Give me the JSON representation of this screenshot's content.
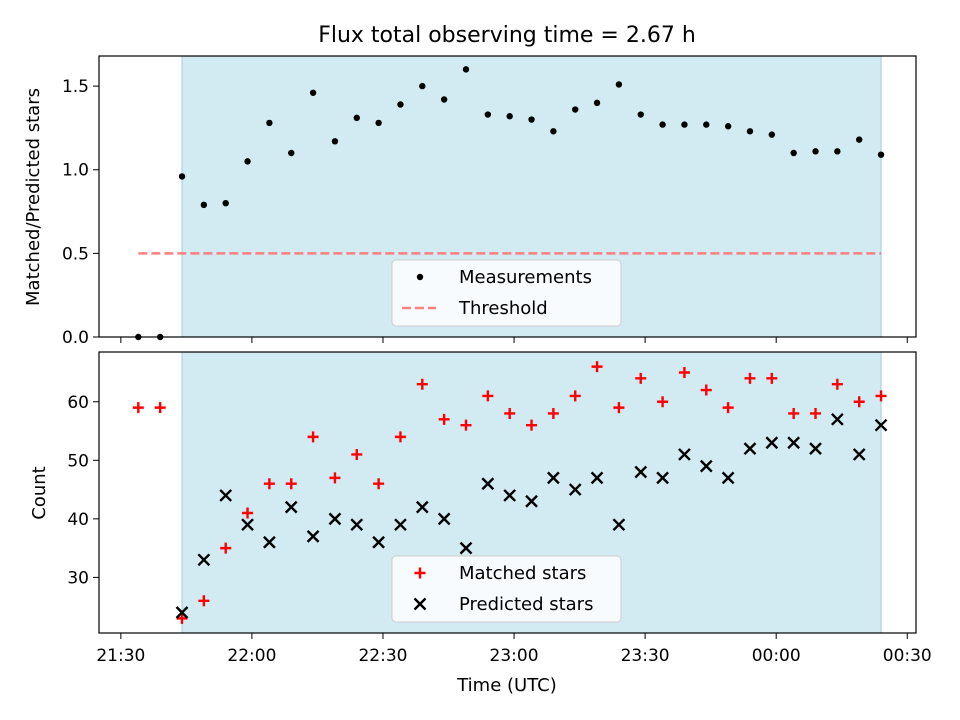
{
  "chart_data": [
    {
      "type": "scatter",
      "title": "Flux total observing time = 2.67 h",
      "xlabel": "",
      "ylabel": "Matched/Predicted stars",
      "ylim": [
        0,
        1.68
      ],
      "yticks": [
        0.0,
        0.5,
        1.0,
        1.5
      ],
      "ytick_labels": [
        "0.0",
        "0.5",
        "1.0",
        "1.5"
      ],
      "xlim": [
        "21:25",
        "00:32"
      ],
      "shaded_span": [
        "21:44",
        "00:24"
      ],
      "shade_color": "#add8e6",
      "grid": false,
      "legend_position": "lower center",
      "series": [
        {
          "name": "Measurements",
          "marker": "dot",
          "color": "#000000",
          "points": [
            [
              "21:34",
              0.0
            ],
            [
              "21:39",
              0.0
            ],
            [
              "21:44",
              0.96
            ],
            [
              "21:49",
              0.79
            ],
            [
              "21:54",
              0.8
            ],
            [
              "21:59",
              1.05
            ],
            [
              "22:04",
              1.28
            ],
            [
              "22:09",
              1.1
            ],
            [
              "22:14",
              1.46
            ],
            [
              "22:19",
              1.17
            ],
            [
              "22:24",
              1.31
            ],
            [
              "22:29",
              1.28
            ],
            [
              "22:34",
              1.39
            ],
            [
              "22:39",
              1.5
            ],
            [
              "22:44",
              1.42
            ],
            [
              "22:49",
              1.6
            ],
            [
              "22:54",
              1.33
            ],
            [
              "22:59",
              1.32
            ],
            [
              "23:04",
              1.3
            ],
            [
              "23:09",
              1.23
            ],
            [
              "23:14",
              1.36
            ],
            [
              "23:19",
              1.4
            ],
            [
              "23:24",
              1.51
            ],
            [
              "23:29",
              1.33
            ],
            [
              "23:34",
              1.27
            ],
            [
              "23:39",
              1.27
            ],
            [
              "23:44",
              1.27
            ],
            [
              "23:49",
              1.26
            ],
            [
              "23:54",
              1.23
            ],
            [
              "23:59",
              1.21
            ],
            [
              "00:04",
              1.1
            ],
            [
              "00:09",
              1.11
            ],
            [
              "00:14",
              1.11
            ],
            [
              "00:19",
              1.18
            ],
            [
              "00:24",
              1.09
            ]
          ]
        },
        {
          "name": "Threshold",
          "style": "dashed",
          "color": "#ff6b6b",
          "points": [
            [
              "21:34",
              0.5
            ],
            [
              "00:24",
              0.5
            ]
          ]
        }
      ]
    },
    {
      "type": "scatter",
      "title": "",
      "xlabel": "Time (UTC)",
      "ylabel": "Count",
      "ylim": [
        20.5,
        68.5
      ],
      "yticks": [
        30,
        40,
        50,
        60
      ],
      "ytick_labels": [
        "30",
        "40",
        "50",
        "60"
      ],
      "xlim": [
        "21:25",
        "00:32"
      ],
      "xticks": [
        "21:30",
        "22:00",
        "22:30",
        "23:00",
        "23:30",
        "00:00",
        "00:30"
      ],
      "xtick_labels": [
        "21:30",
        "22:00",
        "22:30",
        "23:00",
        "23:30",
        "00:00",
        "00:30"
      ],
      "shaded_span": [
        "21:44",
        "00:24"
      ],
      "shade_color": "#add8e6",
      "grid": false,
      "legend_position": "lower center",
      "series": [
        {
          "name": "Matched stars",
          "marker": "plus",
          "color": "#ff0000",
          "points": [
            [
              "21:34",
              59
            ],
            [
              "21:39",
              59
            ],
            [
              "21:44",
              23
            ],
            [
              "21:49",
              26
            ],
            [
              "21:54",
              35
            ],
            [
              "21:59",
              41
            ],
            [
              "22:04",
              46
            ],
            [
              "22:09",
              46
            ],
            [
              "22:14",
              54
            ],
            [
              "22:19",
              47
            ],
            [
              "22:24",
              51
            ],
            [
              "22:29",
              46
            ],
            [
              "22:34",
              54
            ],
            [
              "22:39",
              63
            ],
            [
              "22:44",
              57
            ],
            [
              "22:49",
              56
            ],
            [
              "22:54",
              61
            ],
            [
              "22:59",
              58
            ],
            [
              "23:04",
              56
            ],
            [
              "23:09",
              58
            ],
            [
              "23:14",
              61
            ],
            [
              "23:19",
              66
            ],
            [
              "23:24",
              59
            ],
            [
              "23:29",
              64
            ],
            [
              "23:34",
              60
            ],
            [
              "23:39",
              65
            ],
            [
              "23:44",
              62
            ],
            [
              "23:49",
              59
            ],
            [
              "23:54",
              64
            ],
            [
              "23:59",
              64
            ],
            [
              "00:04",
              58
            ],
            [
              "00:09",
              58
            ],
            [
              "00:14",
              63
            ],
            [
              "00:19",
              60
            ],
            [
              "00:24",
              61
            ]
          ]
        },
        {
          "name": "Predicted stars",
          "marker": "x",
          "color": "#000000",
          "points": [
            [
              "21:44",
              24
            ],
            [
              "21:49",
              33
            ],
            [
              "21:54",
              44
            ],
            [
              "21:59",
              39
            ],
            [
              "22:04",
              36
            ],
            [
              "22:09",
              42
            ],
            [
              "22:14",
              37
            ],
            [
              "22:19",
              40
            ],
            [
              "22:24",
              39
            ],
            [
              "22:29",
              36
            ],
            [
              "22:34",
              39
            ],
            [
              "22:39",
              42
            ],
            [
              "22:44",
              40
            ],
            [
              "22:49",
              35
            ],
            [
              "22:54",
              46
            ],
            [
              "22:59",
              44
            ],
            [
              "23:04",
              43
            ],
            [
              "23:09",
              47
            ],
            [
              "23:14",
              45
            ],
            [
              "23:19",
              47
            ],
            [
              "23:24",
              39
            ],
            [
              "23:29",
              48
            ],
            [
              "23:34",
              47
            ],
            [
              "23:39",
              51
            ],
            [
              "23:44",
              49
            ],
            [
              "23:49",
              47
            ],
            [
              "23:54",
              52
            ],
            [
              "23:59",
              53
            ],
            [
              "00:04",
              53
            ],
            [
              "00:09",
              52
            ],
            [
              "00:14",
              57
            ],
            [
              "00:19",
              51
            ],
            [
              "00:24",
              56
            ]
          ]
        }
      ]
    }
  ]
}
